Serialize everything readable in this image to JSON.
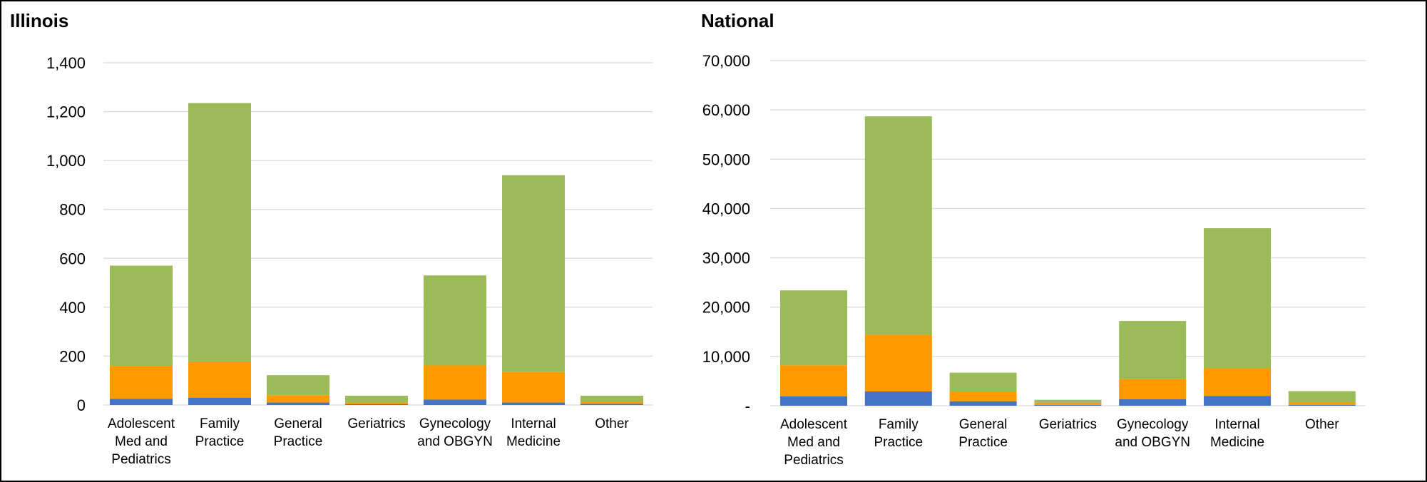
{
  "colors": {
    "series1": "#4472C4",
    "series2": "#FF9900",
    "series3": "#9BBB59",
    "grid": "#D9D9D9"
  },
  "chart_data": [
    {
      "type": "bar",
      "stacked": true,
      "title": "Illinois",
      "categories": [
        "Adolescent Med and Pediatrics",
        "Family Practice",
        "General Practice",
        "Geriatrics",
        "Gynecology and OBGYN",
        "Internal Medicine",
        "Other"
      ],
      "category_lines": [
        [
          "Adolescent",
          "Med and",
          "Pediatrics"
        ],
        [
          "Family",
          "Practice"
        ],
        [
          "General",
          "Practice"
        ],
        [
          "Geriatrics"
        ],
        [
          "Gynecology",
          "and OBGYN"
        ],
        [
          "Internal",
          "Medicine"
        ],
        [
          "Other"
        ]
      ],
      "series": [
        {
          "values": [
            25,
            30,
            10,
            3,
            22,
            10,
            5
          ]
        },
        {
          "values": [
            135,
            145,
            30,
            7,
            140,
            125,
            8
          ]
        },
        {
          "values": [
            410,
            1060,
            82,
            28,
            368,
            805,
            25
          ]
        }
      ],
      "ylim": [
        0,
        1400
      ],
      "yticks": [
        "0",
        "200",
        "400",
        "600",
        "800",
        "1,000",
        "1,200",
        "1,400"
      ],
      "grid": true
    },
    {
      "type": "bar",
      "stacked": true,
      "title": "National",
      "categories": [
        "Adolescent Med and Pediatrics",
        "Family Practice",
        "General Practice",
        "Geriatrics",
        "Gynecology and OBGYN",
        "Internal Medicine",
        "Other"
      ],
      "category_lines": [
        [
          "Adolescent",
          "Med and",
          "Pediatrics"
        ],
        [
          "Family",
          "Practice"
        ],
        [
          "General",
          "Practice"
        ],
        [
          "Geriatrics"
        ],
        [
          "Gynecology",
          "and OBGYN"
        ],
        [
          "Internal",
          "Medicine"
        ],
        [
          "Other"
        ]
      ],
      "series": [
        {
          "values": [
            1900,
            2900,
            900,
            150,
            1300,
            2000,
            150
          ]
        },
        {
          "values": [
            6300,
            11500,
            2000,
            450,
            4100,
            5600,
            500
          ]
        },
        {
          "values": [
            15200,
            44300,
            3800,
            600,
            11800,
            28400,
            2300
          ]
        }
      ],
      "ylim": [
        0,
        70000
      ],
      "yticks": [
        "-",
        "10,000",
        "20,000",
        "30,000",
        "40,000",
        "50,000",
        "60,000",
        "70,000"
      ],
      "grid": true
    }
  ]
}
